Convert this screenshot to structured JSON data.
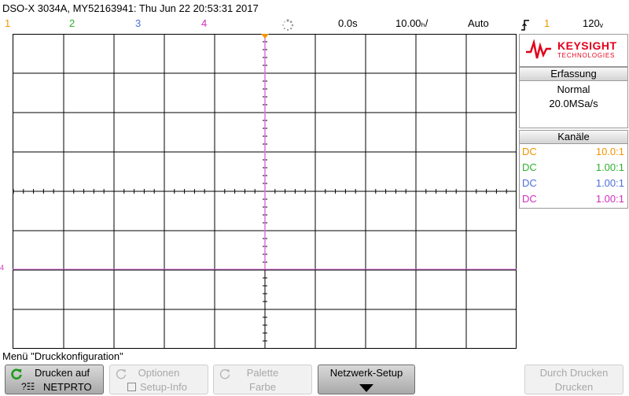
{
  "header": {
    "title": "DSO-X 3034A, MY52163941: Thu Jun 22 20:53:31 2017",
    "channels": [
      {
        "label": "1",
        "color": "#f29400"
      },
      {
        "label": "2",
        "color": "#2fb12f"
      },
      {
        "label": "3",
        "color": "#4f6fdc"
      },
      {
        "label": "4",
        "color": "#d12fbe"
      }
    ],
    "time_offset": "0.0s",
    "timebase": "10.00ₕ/",
    "trigger_mode": "Auto",
    "trigger_channel": "1",
    "trigger_level": "120ᵥ"
  },
  "brand": {
    "name": "KEYSIGHT",
    "sub": "TECHNOLOGIES",
    "color": "#e2001a"
  },
  "acquisition": {
    "title": "Erfassung",
    "mode": "Normal",
    "rate": "20.0MSa/s"
  },
  "channels_panel": {
    "title": "Kanäle",
    "rows": [
      {
        "coupling": "DC",
        "probe": "10.0:1",
        "color": "#f29400"
      },
      {
        "coupling": "DC",
        "probe": "1.00:1",
        "color": "#2fb12f"
      },
      {
        "coupling": "DC",
        "probe": "1.00:1",
        "color": "#4f6fdc"
      },
      {
        "coupling": "DC",
        "probe": "1.00:1",
        "color": "#d12fbe"
      }
    ]
  },
  "menu": {
    "label": "Menü \"Druckkonfiguration\"",
    "softkeys": [
      {
        "line1": "Drucken auf",
        "line2": "NETPRTO"
      },
      {
        "line1": "Optionen",
        "line2": "Setup-Info"
      },
      {
        "line1": "Palette",
        "line2": "Farbe"
      },
      {
        "line1": "Netzwerk-Setup",
        "line2": ""
      },
      {
        "line1": "Durch Drucken",
        "line2": "Drucken"
      }
    ]
  },
  "trace": {
    "ground_marker": "4",
    "color": "#e070e0"
  }
}
